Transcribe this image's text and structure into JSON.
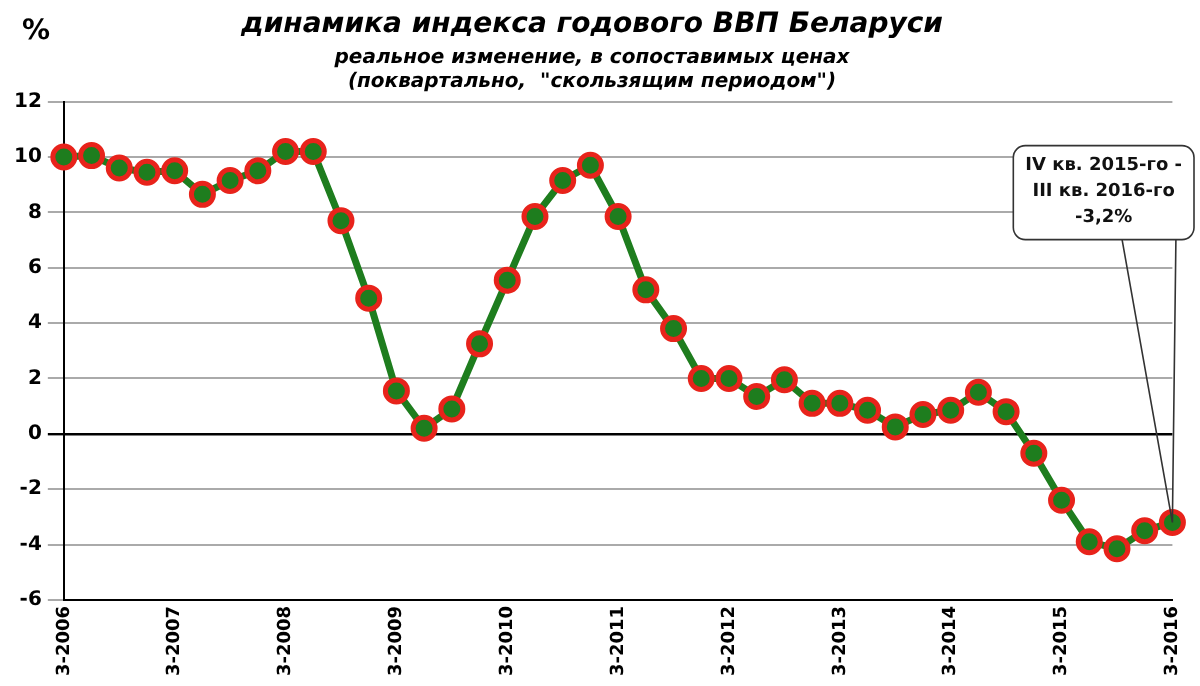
{
  "chart_data": {
    "type": "line",
    "title": "динамика индекса годового ВВП Беларуси",
    "subtitle": "реальное изменение, в сопоставимых ценах\n(поквартально,  \"скользящим периодом\")",
    "ylabel": "%",
    "categories": [
      "3-2006",
      null,
      null,
      null,
      "3-2007",
      null,
      null,
      null,
      "3-2008",
      null,
      null,
      null,
      "3-2009",
      null,
      null,
      null,
      "3-2010",
      null,
      null,
      null,
      "3-2011",
      null,
      null,
      null,
      "3-2012",
      null,
      null,
      null,
      "3-2013",
      null,
      null,
      null,
      "3-2014",
      null,
      null,
      null,
      "3-2015",
      null,
      null,
      null,
      "3-2016"
    ],
    "series": [
      {
        "color": "#1e7d1e",
        "values": [
          10.0,
          10.05,
          9.6,
          9.45,
          9.5,
          8.65,
          9.15,
          9.5,
          10.2,
          10.2,
          7.7,
          4.9,
          1.55,
          0.2,
          0.9,
          3.25,
          5.55,
          7.85,
          9.15,
          9.7,
          7.85,
          5.2,
          3.8,
          2.0,
          2.0,
          1.35,
          1.95,
          1.1,
          1.1,
          0.85,
          0.25,
          0.7,
          0.85,
          1.5,
          0.8,
          -0.7,
          -2.4,
          -3.9,
          -4.15,
          -3.5,
          -3.2
        ]
      }
    ],
    "ylim": [
      -6,
      12
    ],
    "yticks": [
      -6,
      -4,
      -2,
      0,
      2,
      4,
      6,
      8,
      10,
      12
    ],
    "grid": "y",
    "legend": false,
    "marker": "circle",
    "line_style": "solid",
    "annotations": [
      "IV кв. 2015-го -\nIII кв. 2016-го\n-3,2%"
    ]
  }
}
